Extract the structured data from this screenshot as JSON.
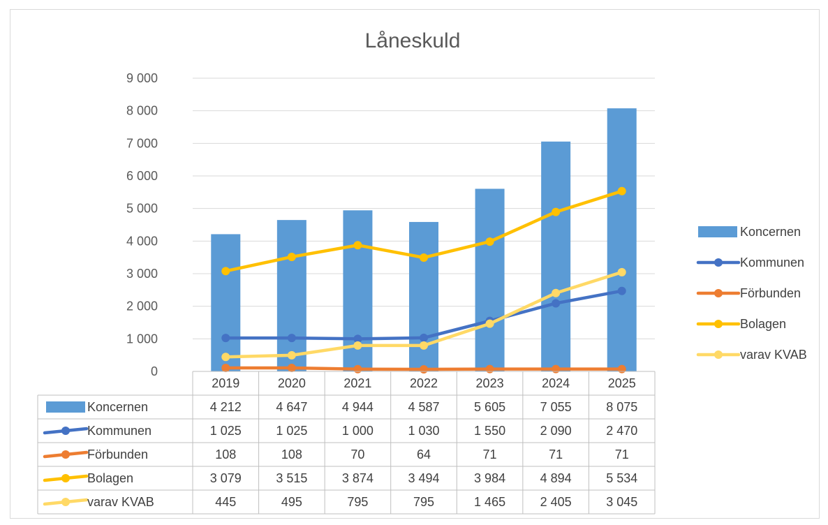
{
  "chart_data": {
    "type": "bar",
    "title": "Låneskuld",
    "categories": [
      "2019",
      "2020",
      "2021",
      "2022",
      "2023",
      "2024",
      "2025"
    ],
    "ylim": [
      0,
      9000
    ],
    "y_ticks": [
      0,
      1000,
      2000,
      3000,
      4000,
      5000,
      6000,
      7000,
      8000,
      9000
    ],
    "y_tick_labels": [
      "0",
      "1 000",
      "2 000",
      "3 000",
      "4 000",
      "5 000",
      "6 000",
      "7 000",
      "8 000",
      "9 000"
    ],
    "grid": true,
    "legend_position": "right",
    "data_table": true,
    "series": [
      {
        "name": "Koncernen",
        "kind": "bar",
        "color": "#5b9bd5",
        "values": [
          4212,
          4647,
          4944,
          4587,
          5605,
          7055,
          8075
        ],
        "labels": [
          "4 212",
          "4 647",
          "4 944",
          "4 587",
          "5 605",
          "7 055",
          "8 075"
        ]
      },
      {
        "name": "Kommunen",
        "kind": "line",
        "color": "#4472c4",
        "values": [
          1025,
          1025,
          1000,
          1030,
          1550,
          2090,
          2470
        ],
        "labels": [
          "1 025",
          "1 025",
          "1 000",
          "1 030",
          "1 550",
          "2 090",
          "2 470"
        ]
      },
      {
        "name": "Förbunden",
        "kind": "line",
        "color": "#ed7d31",
        "values": [
          108,
          108,
          70,
          64,
          71,
          71,
          71
        ],
        "labels": [
          "108",
          "108",
          "70",
          "64",
          "71",
          "71",
          "71"
        ]
      },
      {
        "name": "Bolagen",
        "kind": "line",
        "color": "#ffc000",
        "values": [
          3079,
          3515,
          3874,
          3494,
          3984,
          4894,
          5534
        ],
        "labels": [
          "3 079",
          "3 515",
          "3 874",
          "3 494",
          "3 984",
          "4 894",
          "5 534"
        ]
      },
      {
        "name": "varav KVAB",
        "kind": "line",
        "color": "#ffd966",
        "values": [
          445,
          495,
          795,
          795,
          1465,
          2405,
          3045
        ],
        "labels": [
          "445",
          "495",
          "795",
          "795",
          "1 465",
          "2 405",
          "3 045"
        ]
      }
    ]
  }
}
